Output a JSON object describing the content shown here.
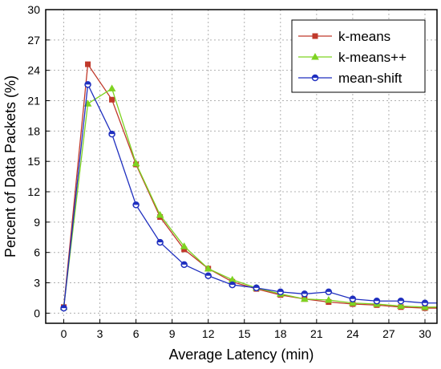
{
  "chart_data": {
    "type": "line",
    "xlabel": "Average Latency (min)",
    "ylabel": "Percent of Data Packets (%)",
    "xlim": [
      -1.5,
      31
    ],
    "ylim": [
      -1,
      30
    ],
    "xticks": [
      0,
      3,
      6,
      9,
      12,
      15,
      18,
      21,
      24,
      27,
      30
    ],
    "yticks": [
      0,
      3,
      6,
      9,
      12,
      15,
      18,
      21,
      24,
      27,
      30
    ],
    "grid": true,
    "legend_position": "top-right",
    "x": [
      0,
      2,
      4,
      6,
      8,
      10,
      12,
      14,
      16,
      18,
      20,
      22,
      24,
      26,
      28,
      30,
      31
    ],
    "series": [
      {
        "name": "k-means",
        "color": "#c0392b",
        "marker": "square",
        "values": [
          0.6,
          24.6,
          21.1,
          14.7,
          9.5,
          6.3,
          4.4,
          3.1,
          2.4,
          1.8,
          1.4,
          1.1,
          0.9,
          0.8,
          0.6,
          0.5,
          0.5
        ]
      },
      {
        "name": "k-means++",
        "color": "#7ed321",
        "marker": "triangle",
        "values": [
          0.6,
          20.7,
          22.2,
          14.8,
          9.7,
          6.6,
          4.4,
          3.3,
          2.5,
          1.9,
          1.4,
          1.3,
          1.0,
          0.9,
          0.7,
          0.6,
          0.6
        ]
      },
      {
        "name": "mean-shift",
        "color": "#1f2fbf",
        "marker": "circle",
        "values": [
          0.5,
          22.6,
          17.7,
          10.7,
          7.0,
          4.8,
          3.7,
          2.8,
          2.5,
          2.1,
          1.9,
          2.1,
          1.4,
          1.2,
          1.2,
          1.0,
          1.0
        ]
      }
    ]
  }
}
